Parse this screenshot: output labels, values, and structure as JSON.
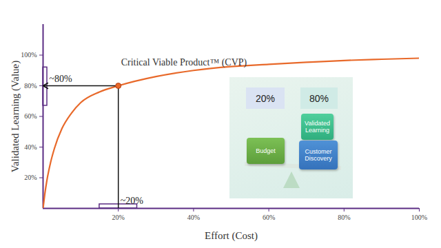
{
  "chart_data": {
    "type": "line",
    "x_label": "Effort (Cost)",
    "y_label": "Validated Learning (Value)",
    "x": [
      0,
      0.5,
      1,
      2,
      3,
      5,
      7.5,
      10,
      15,
      20,
      30,
      40,
      50,
      60,
      70,
      80,
      90,
      100
    ],
    "values": [
      0,
      10,
      18,
      30,
      39,
      52,
      62,
      69,
      76,
      80,
      86,
      90,
      92.5,
      94,
      95.3,
      96.5,
      97.3,
      98
    ],
    "color": "#e8692a",
    "xlim": [
      0,
      100
    ],
    "ylim": [
      0,
      120
    ],
    "xticks": [
      {
        "value": 20,
        "label": "20%"
      },
      {
        "value": 40,
        "label": "40%"
      },
      {
        "value": 60,
        "label": "60%"
      },
      {
        "value": 80,
        "label": "80%"
      },
      {
        "value": 100,
        "label": "100%"
      }
    ],
    "yticks": [
      {
        "value": 20,
        "label": "20%"
      },
      {
        "value": 40,
        "label": "40%"
      },
      {
        "value": 60,
        "label": "60%"
      },
      {
        "value": 80,
        "label": "80%"
      },
      {
        "value": 100,
        "label": "100%"
      }
    ],
    "grid": false,
    "highlight": {
      "x": 20,
      "y": 80,
      "label": "Critical Viable Product™ (CVP)"
    },
    "annotations": [
      {
        "text": "~80%",
        "axis": "y",
        "range": [
          67,
          92
        ]
      },
      {
        "text": "~20%",
        "axis": "x",
        "range": [
          15,
          25
        ]
      }
    ],
    "inset": {
      "shares": [
        "20%",
        "80%"
      ],
      "left": [
        "Budget"
      ],
      "right": [
        "Validated Learning",
        "Customer Discovery"
      ]
    }
  }
}
